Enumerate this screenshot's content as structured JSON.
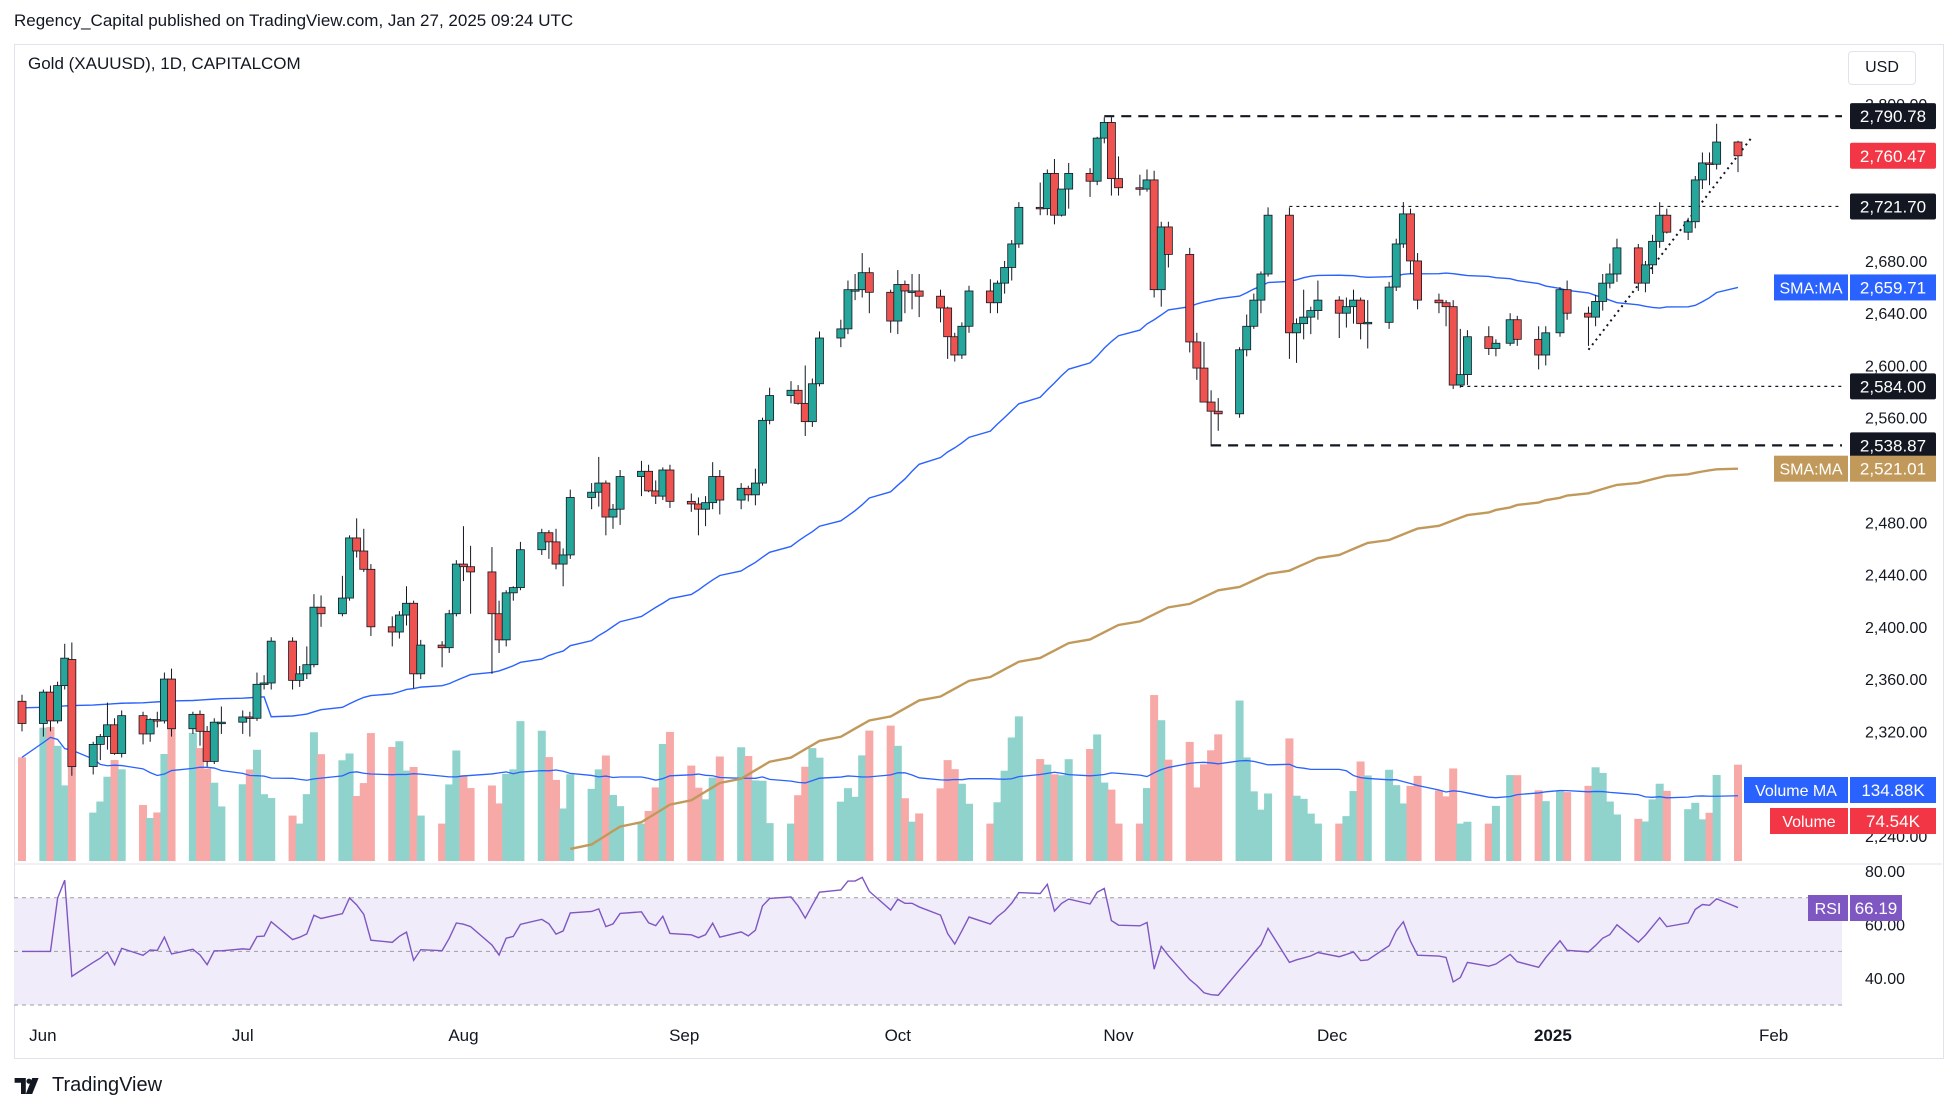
{
  "header": {
    "published": "Regency_Capital published on TradingView.com, Jan 27, 2025 09:24 UTC",
    "symbol": "Gold (XAUUSD), 1D, CAPITALCOM",
    "currency": "USD"
  },
  "footer": {
    "brand": "TradingView"
  },
  "colors": {
    "up": "#26a69a",
    "down": "#ef5350",
    "volume_up": "#8fd3cc",
    "volume_down": "#f7a9a7",
    "sma50": "#2962ff",
    "sma200": "#c19a5b",
    "rsi_line": "#7e57c2",
    "rsi_band": "#f1ecfa",
    "axis_text": "#131722"
  },
  "chart_data": {
    "type": "candlestick",
    "ylim": [
      2220,
      2820
    ],
    "y_ticks": [
      "2,240.00",
      "2,320.00",
      "2,360.00",
      "2,400.00",
      "2,440.00",
      "2,480.00",
      "2,560.00",
      "2,600.00",
      "2,640.00",
      "2,680.00",
      "2,800.00"
    ],
    "y_tick_values": [
      2240,
      2320,
      2360,
      2400,
      2440,
      2480,
      2560,
      2600,
      2640,
      2680,
      2800
    ],
    "x_ticks": [
      "Jun",
      "Jul",
      "Aug",
      "Sep",
      "Oct",
      "Nov",
      "Dec",
      "2025",
      "Feb"
    ],
    "x_tick_dates": [
      "2024-06-01",
      "2024-07-01",
      "2024-08-01",
      "2024-09-01",
      "2024-10-01",
      "2024-11-01",
      "2024-12-01",
      "2025-01-01",
      "2025-02-01"
    ],
    "price_labels": [
      {
        "text": "2,790.78",
        "value": 2790.78,
        "style": "black"
      },
      {
        "text": "2,760.47",
        "value": 2760.47,
        "style": "red"
      },
      {
        "text": "2,721.70",
        "value": 2721.7,
        "style": "black"
      },
      {
        "text": "2,584.00",
        "value": 2584.0,
        "style": "black"
      },
      {
        "text": "2,538.87",
        "value": 2538.87,
        "style": "black"
      }
    ],
    "indicator_labels": {
      "sma50": {
        "name": "SMA:MA",
        "value": "2,659.71"
      },
      "sma200": {
        "name": "SMA:MA",
        "value": "2,521.01"
      },
      "volume_ma": {
        "name": "Volume MA",
        "value": "134.88K"
      },
      "volume": {
        "name": "Volume",
        "value": "74.54K"
      },
      "rsi": {
        "name": "RSI",
        "value": "66.19"
      }
    },
    "rsi": {
      "ticks": [
        "80.00",
        "60.00",
        "40.00"
      ],
      "tick_values": [
        80,
        60,
        40
      ],
      "band": [
        30,
        70
      ],
      "mid": 50
    },
    "levels": [
      {
        "value": 2790.78,
        "from": "2024-10-30",
        "to": "2025-01-27",
        "style": "dashed"
      },
      {
        "value": 2721.7,
        "from": "2024-11-25",
        "to": "2025-01-27",
        "style": "dotted"
      },
      {
        "value": 2584.0,
        "from": "2024-12-19",
        "to": "2025-01-27",
        "style": "dotted"
      },
      {
        "value": 2538.87,
        "from": "2024-11-14",
        "to": "2025-01-27",
        "style": "dashed"
      }
    ],
    "trendline": {
      "from": [
        "2025-01-06",
        2612
      ],
      "to": [
        "2025-01-29",
        2775
      ]
    },
    "ohlc": [
      [
        "2024-05-31",
        2343,
        2348,
        2320,
        2326
      ],
      [
        "2024-06-03",
        2326,
        2352,
        2316,
        2350
      ],
      [
        "2024-06-04",
        2350,
        2355,
        2320,
        2328
      ],
      [
        "2024-06-05",
        2328,
        2358,
        2326,
        2355
      ],
      [
        "2024-06-06",
        2355,
        2387,
        2352,
        2376
      ],
      [
        "2024-06-07",
        2375,
        2388,
        2286,
        2293
      ],
      [
        "2024-06-10",
        2293,
        2312,
        2287,
        2310
      ],
      [
        "2024-06-11",
        2310,
        2318,
        2298,
        2316
      ],
      [
        "2024-06-12",
        2316,
        2342,
        2306,
        2325
      ],
      [
        "2024-06-13",
        2325,
        2330,
        2302,
        2303
      ],
      [
        "2024-06-14",
        2303,
        2336,
        2300,
        2332
      ],
      [
        "2024-06-17",
        2332,
        2335,
        2310,
        2318
      ],
      [
        "2024-06-18",
        2318,
        2330,
        2312,
        2329
      ],
      [
        "2024-06-19",
        2329,
        2335,
        2323,
        2328
      ],
      [
        "2024-06-20",
        2328,
        2365,
        2326,
        2360
      ],
      [
        "2024-06-21",
        2360,
        2368,
        2316,
        2322
      ],
      [
        "2024-06-24",
        2322,
        2335,
        2318,
        2333
      ],
      [
        "2024-06-25",
        2333,
        2336,
        2309,
        2320
      ],
      [
        "2024-06-26",
        2320,
        2324,
        2293,
        2297
      ],
      [
        "2024-06-27",
        2297,
        2330,
        2295,
        2327
      ],
      [
        "2024-06-28",
        2327,
        2339,
        2318,
        2327
      ],
      [
        "2024-07-01",
        2327,
        2336,
        2318,
        2331
      ],
      [
        "2024-07-02",
        2331,
        2335,
        2316,
        2330
      ],
      [
        "2024-07-03",
        2330,
        2365,
        2328,
        2356
      ],
      [
        "2024-07-04",
        2356,
        2363,
        2352,
        2357
      ],
      [
        "2024-07-05",
        2357,
        2392,
        2352,
        2389
      ],
      [
        "2024-07-08",
        2389,
        2392,
        2352,
        2359
      ],
      [
        "2024-07-09",
        2359,
        2370,
        2354,
        2364
      ],
      [
        "2024-07-10",
        2364,
        2385,
        2360,
        2371
      ],
      [
        "2024-07-11",
        2371,
        2425,
        2369,
        2415
      ],
      [
        "2024-07-12",
        2415,
        2424,
        2400,
        2410
      ],
      [
        "2024-07-15",
        2410,
        2439,
        2408,
        2422
      ],
      [
        "2024-07-16",
        2422,
        2470,
        2420,
        2468
      ],
      [
        "2024-07-17",
        2468,
        2483,
        2453,
        2458
      ],
      [
        "2024-07-18",
        2458,
        2475,
        2442,
        2444
      ],
      [
        "2024-07-19",
        2444,
        2448,
        2393,
        2400
      ],
      [
        "2024-07-22",
        2400,
        2408,
        2385,
        2396
      ],
      [
        "2024-07-23",
        2396,
        2412,
        2391,
        2409
      ],
      [
        "2024-07-24",
        2409,
        2431,
        2401,
        2418
      ],
      [
        "2024-07-25",
        2418,
        2420,
        2353,
        2364
      ],
      [
        "2024-07-26",
        2364,
        2390,
        2360,
        2386
      ],
      [
        "2024-07-29",
        2386,
        2389,
        2369,
        2384
      ],
      [
        "2024-07-30",
        2384,
        2413,
        2380,
        2410
      ],
      [
        "2024-07-31",
        2410,
        2451,
        2408,
        2448
      ],
      [
        "2024-08-01",
        2448,
        2477,
        2435,
        2446
      ],
      [
        "2024-08-02",
        2446,
        2462,
        2410,
        2442
      ],
      [
        "2024-08-05",
        2442,
        2461,
        2364,
        2410
      ],
      [
        "2024-08-06",
        2410,
        2420,
        2380,
        2390
      ],
      [
        "2024-08-07",
        2390,
        2428,
        2385,
        2426
      ],
      [
        "2024-08-08",
        2426,
        2431,
        2420,
        2430
      ],
      [
        "2024-08-09",
        2430,
        2465,
        2428,
        2459
      ],
      [
        "2024-08-12",
        2459,
        2475,
        2455,
        2472
      ],
      [
        "2024-08-13",
        2472,
        2474,
        2452,
        2465
      ],
      [
        "2024-08-14",
        2465,
        2475,
        2444,
        2448
      ],
      [
        "2024-08-15",
        2448,
        2460,
        2431,
        2455
      ],
      [
        "2024-08-16",
        2455,
        2505,
        2452,
        2499
      ],
      [
        "2024-08-19",
        2499,
        2510,
        2490,
        2503
      ],
      [
        "2024-08-20",
        2503,
        2530,
        2492,
        2510
      ],
      [
        "2024-08-21",
        2510,
        2512,
        2470,
        2484
      ],
      [
        "2024-08-22",
        2484,
        2494,
        2475,
        2490
      ],
      [
        "2024-08-23",
        2490,
        2520,
        2478,
        2515
      ],
      [
        "2024-08-26",
        2515,
        2527,
        2500,
        2519
      ],
      [
        "2024-08-27",
        2519,
        2524,
        2503,
        2504
      ],
      [
        "2024-08-28",
        2504,
        2512,
        2494,
        2500
      ],
      [
        "2024-08-29",
        2500,
        2522,
        2497,
        2520
      ],
      [
        "2024-08-30",
        2520,
        2524,
        2491,
        2496
      ],
      [
        "2024-09-02",
        2496,
        2502,
        2488,
        2494
      ],
      [
        "2024-09-03",
        2494,
        2499,
        2470,
        2490
      ],
      [
        "2024-09-04",
        2490,
        2500,
        2477,
        2495
      ],
      [
        "2024-09-05",
        2495,
        2526,
        2490,
        2515
      ],
      [
        "2024-09-06",
        2515,
        2520,
        2486,
        2497
      ],
      [
        "2024-09-09",
        2497,
        2510,
        2490,
        2506
      ],
      [
        "2024-09-10",
        2506,
        2508,
        2496,
        2501
      ],
      [
        "2024-09-11",
        2501,
        2521,
        2493,
        2510
      ],
      [
        "2024-09-12",
        2510,
        2560,
        2508,
        2558
      ],
      [
        "2024-09-13",
        2558,
        2583,
        2555,
        2577
      ],
      [
        "2024-09-16",
        2577,
        2588,
        2571,
        2581
      ],
      [
        "2024-09-17",
        2581,
        2585,
        2570,
        2571
      ],
      [
        "2024-09-18",
        2571,
        2600,
        2546,
        2557
      ],
      [
        "2024-09-19",
        2557,
        2590,
        2553,
        2586
      ],
      [
        "2024-09-20",
        2586,
        2626,
        2584,
        2621
      ],
      [
        "2024-09-23",
        2621,
        2635,
        2614,
        2628
      ],
      [
        "2024-09-24",
        2628,
        2665,
        2624,
        2658
      ],
      [
        "2024-09-25",
        2658,
        2670,
        2650,
        2658
      ],
      [
        "2024-09-26",
        2658,
        2686,
        2652,
        2671
      ],
      [
        "2024-09-27",
        2671,
        2675,
        2640,
        2656
      ],
      [
        "2024-09-30",
        2656,
        2658,
        2625,
        2634
      ],
      [
        "2024-10-01",
        2634,
        2673,
        2624,
        2662
      ],
      [
        "2024-10-02",
        2662,
        2665,
        2640,
        2657
      ],
      [
        "2024-10-03",
        2657,
        2670,
        2643,
        2657
      ],
      [
        "2024-10-04",
        2657,
        2670,
        2637,
        2653
      ],
      [
        "2024-10-07",
        2653,
        2658,
        2633,
        2644
      ],
      [
        "2024-10-08",
        2644,
        2645,
        2605,
        2622
      ],
      [
        "2024-10-09",
        2622,
        2625,
        2603,
        2608
      ],
      [
        "2024-10-10",
        2608,
        2633,
        2605,
        2630
      ],
      [
        "2024-10-11",
        2630,
        2661,
        2625,
        2657
      ],
      [
        "2024-10-14",
        2657,
        2666,
        2640,
        2648
      ],
      [
        "2024-10-15",
        2648,
        2665,
        2640,
        2663
      ],
      [
        "2024-10-16",
        2663,
        2680,
        2655,
        2675
      ],
      [
        "2024-10-17",
        2675,
        2696,
        2665,
        2693
      ],
      [
        "2024-10-18",
        2693,
        2725,
        2690,
        2721
      ],
      [
        "2024-10-21",
        2721,
        2740,
        2715,
        2720
      ],
      [
        "2024-10-22",
        2720,
        2750,
        2715,
        2747
      ],
      [
        "2024-10-23",
        2747,
        2758,
        2708,
        2715
      ],
      [
        "2024-10-24",
        2715,
        2735,
        2714,
        2735
      ],
      [
        "2024-10-25",
        2735,
        2755,
        2720,
        2747
      ],
      [
        "2024-10-28",
        2747,
        2751,
        2729,
        2741
      ],
      [
        "2024-10-29",
        2741,
        2775,
        2738,
        2774
      ],
      [
        "2024-10-30",
        2774,
        2790,
        2770,
        2786
      ],
      [
        "2024-10-31",
        2786,
        2790,
        2730,
        2743
      ],
      [
        "2024-11-01",
        2743,
        2760,
        2730,
        2736
      ],
      [
        "2024-11-04",
        2736,
        2746,
        2730,
        2735
      ],
      [
        "2024-11-05",
        2735,
        2750,
        2733,
        2742
      ],
      [
        "2024-11-06",
        2742,
        2749,
        2652,
        2658
      ],
      [
        "2024-11-07",
        2658,
        2710,
        2645,
        2706
      ],
      [
        "2024-11-08",
        2706,
        2710,
        2675,
        2685
      ],
      [
        "2024-11-11",
        2685,
        2690,
        2610,
        2618
      ],
      [
        "2024-11-12",
        2618,
        2625,
        2589,
        2598
      ],
      [
        "2024-11-13",
        2598,
        2618,
        2575,
        2572
      ],
      [
        "2024-11-14",
        2572,
        2581,
        2538,
        2565
      ],
      [
        "2024-11-15",
        2565,
        2575,
        2550,
        2563
      ],
      [
        "2024-11-18",
        2563,
        2614,
        2560,
        2612
      ],
      [
        "2024-11-19",
        2612,
        2639,
        2607,
        2630
      ],
      [
        "2024-11-20",
        2630,
        2655,
        2628,
        2650
      ],
      [
        "2024-11-21",
        2650,
        2672,
        2640,
        2670
      ],
      [
        "2024-11-22",
        2670,
        2721,
        2668,
        2715
      ],
      [
        "2024-11-25",
        2715,
        2721,
        2605,
        2625
      ],
      [
        "2024-11-26",
        2625,
        2636,
        2602,
        2632
      ],
      [
        "2024-11-27",
        2632,
        2658,
        2620,
        2637
      ],
      [
        "2024-11-28",
        2637,
        2645,
        2624,
        2642
      ],
      [
        "2024-11-29",
        2642,
        2665,
        2635,
        2650
      ],
      [
        "2024-12-02",
        2650,
        2653,
        2621,
        2640
      ],
      [
        "2024-12-03",
        2640,
        2652,
        2629,
        2645
      ],
      [
        "2024-12-04",
        2645,
        2658,
        2632,
        2650
      ],
      [
        "2024-12-05",
        2650,
        2652,
        2620,
        2632
      ],
      [
        "2024-12-06",
        2632,
        2650,
        2613,
        2633
      ],
      [
        "2024-12-09",
        2633,
        2664,
        2628,
        2660
      ],
      [
        "2024-12-10",
        2660,
        2697,
        2657,
        2693
      ],
      [
        "2024-12-11",
        2693,
        2725,
        2690,
        2716
      ],
      [
        "2024-12-12",
        2716,
        2720,
        2670,
        2680
      ],
      [
        "2024-12-13",
        2680,
        2686,
        2643,
        2650
      ],
      [
        "2024-12-16",
        2650,
        2655,
        2640,
        2648
      ],
      [
        "2024-12-17",
        2648,
        2650,
        2630,
        2645
      ],
      [
        "2024-12-18",
        2645,
        2650,
        2582,
        2585
      ],
      [
        "2024-12-19",
        2585,
        2628,
        2583,
        2593
      ],
      [
        "2024-12-20",
        2593,
        2627,
        2585,
        2622
      ],
      [
        "2024-12-23",
        2622,
        2630,
        2608,
        2613
      ],
      [
        "2024-12-24",
        2613,
        2620,
        2607,
        2617
      ],
      [
        "2024-12-26",
        2617,
        2640,
        2615,
        2635
      ],
      [
        "2024-12-27",
        2635,
        2638,
        2615,
        2620
      ],
      [
        "2024-12-30",
        2620,
        2630,
        2597,
        2608
      ],
      [
        "2024-12-31",
        2608,
        2630,
        2600,
        2625
      ],
      [
        "2025-01-02",
        2625,
        2660,
        2622,
        2658
      ],
      [
        "2025-01-03",
        2658,
        2665,
        2635,
        2640
      ],
      [
        "2025-01-06",
        2640,
        2645,
        2615,
        2637
      ],
      [
        "2025-01-07",
        2637,
        2654,
        2630,
        2649
      ],
      [
        "2025-01-08",
        2649,
        2670,
        2642,
        2663
      ],
      [
        "2025-01-09",
        2663,
        2678,
        2659,
        2670
      ],
      [
        "2025-01-10",
        2670,
        2697,
        2664,
        2690
      ],
      [
        "2025-01-13",
        2690,
        2693,
        2657,
        2663
      ],
      [
        "2025-01-14",
        2663,
        2680,
        2656,
        2677
      ],
      [
        "2025-01-15",
        2677,
        2700,
        2670,
        2695
      ],
      [
        "2025-01-16",
        2695,
        2725,
        2690,
        2715
      ],
      [
        "2025-01-17",
        2715,
        2720,
        2701,
        2702
      ],
      [
        "2025-01-20",
        2702,
        2713,
        2696,
        2710
      ],
      [
        "2025-01-21",
        2710,
        2745,
        2705,
        2742
      ],
      [
        "2025-01-22",
        2742,
        2763,
        2735,
        2755
      ],
      [
        "2025-01-23",
        2755,
        2763,
        2738,
        2754
      ],
      [
        "2025-01-24",
        2754,
        2785,
        2750,
        2771
      ],
      [
        "2025-01-27",
        2771,
        2772,
        2748,
        2760.47
      ]
    ]
  }
}
